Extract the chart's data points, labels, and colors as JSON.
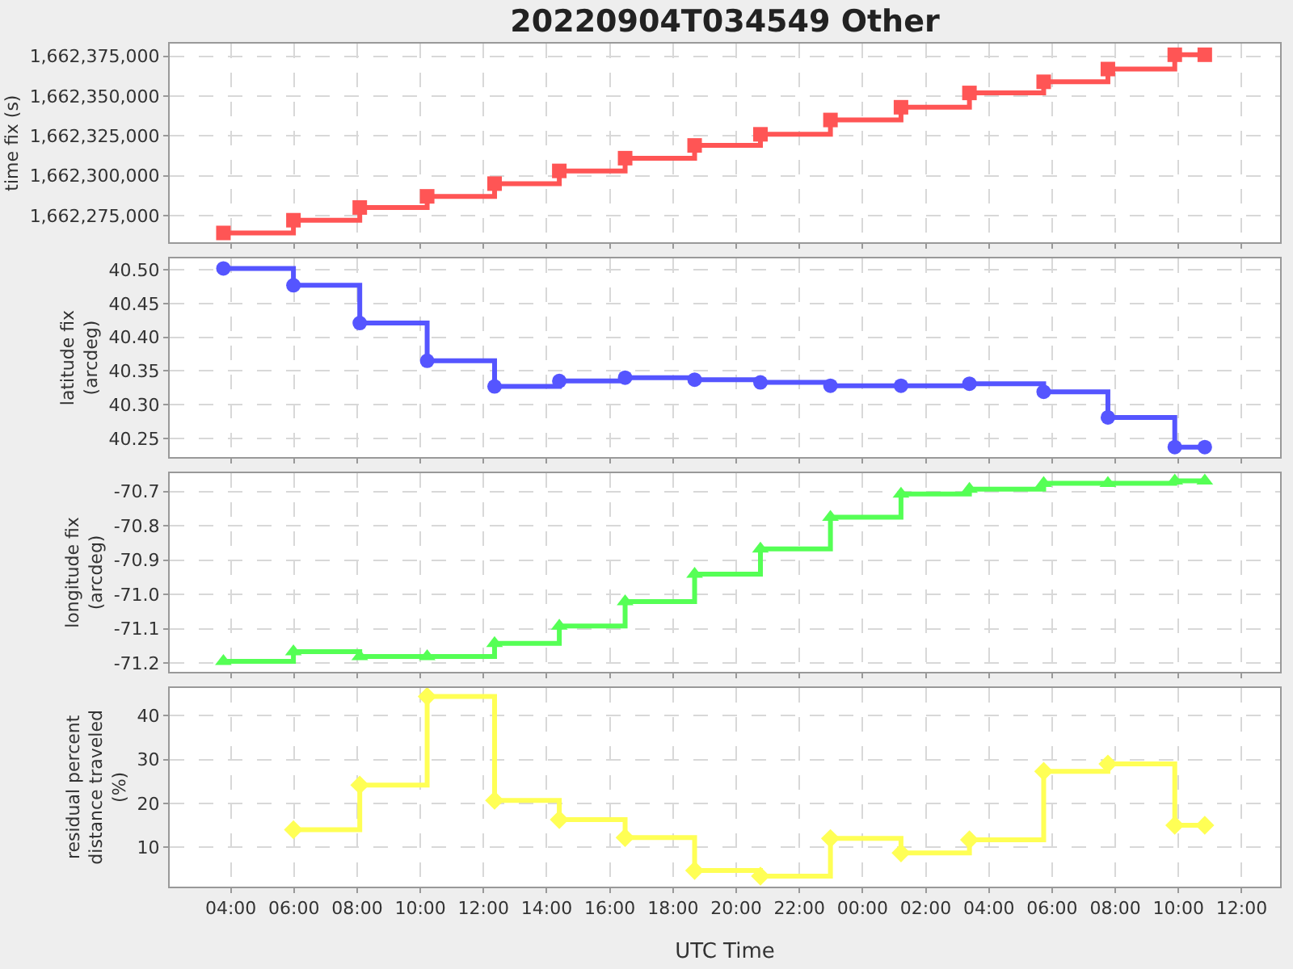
{
  "chart_data": [
    {
      "type": "step",
      "title": "20220904T034549 Other",
      "ylabel": "time fix (s)",
      "tick_labels": "y",
      "grid": true,
      "marker": "square",
      "xlim": [
        "2022-09-04T02:04",
        "2022-09-05T13:13"
      ],
      "xticks": [
        {
          "value": "2022-09-04T04:00",
          "label": null
        },
        {
          "value": "2022-09-04T06:00",
          "label": null
        },
        {
          "value": "2022-09-04T08:00",
          "label": null
        },
        {
          "value": "2022-09-04T10:00",
          "label": null
        },
        {
          "value": "2022-09-04T12:00",
          "label": null
        },
        {
          "value": "2022-09-04T14:00",
          "label": null
        },
        {
          "value": "2022-09-04T16:00",
          "label": null
        },
        {
          "value": "2022-09-04T18:00",
          "label": null
        },
        {
          "value": "2022-09-04T20:00",
          "label": null
        },
        {
          "value": "2022-09-04T22:00",
          "label": null
        },
        {
          "value": "2022-09-05T00:00",
          "label": null
        },
        {
          "value": "2022-09-05T02:00",
          "label": null
        },
        {
          "value": "2022-09-05T04:00",
          "label": null
        },
        {
          "value": "2022-09-05T06:00",
          "label": null
        },
        {
          "value": "2022-09-05T08:00",
          "label": null
        },
        {
          "value": "2022-09-05T10:00",
          "label": null
        },
        {
          "value": "2022-09-05T12:00",
          "label": null
        }
      ],
      "ylim": [
        1662258000,
        1662383000
      ],
      "yticks": [
        {
          "value": 1662275000,
          "label": "1,662,275,000"
        },
        {
          "value": 1662300000,
          "label": "1,662,300,000"
        },
        {
          "value": 1662325000,
          "label": "1,662,325,000"
        },
        {
          "value": 1662350000,
          "label": "1,662,350,000"
        },
        {
          "value": 1662375000,
          "label": "1,662,375,000"
        }
      ],
      "x": [
        "2022-09-04T03:46",
        "2022-09-04T05:59",
        "2022-09-04T08:05",
        "2022-09-04T10:13",
        "2022-09-04T12:21",
        "2022-09-04T14:24",
        "2022-09-04T16:29",
        "2022-09-04T18:41",
        "2022-09-04T20:46",
        "2022-09-04T22:59",
        "2022-09-05T01:13",
        "2022-09-05T03:23",
        "2022-09-05T05:44",
        "2022-09-05T07:46",
        "2022-09-05T09:53",
        "2022-09-05T10:50"
      ],
      "series": [
        {
          "color": "#ff5555",
          "values": [
            1662264000,
            1662272000,
            1662280000,
            1662287000,
            1662295000,
            1662303000,
            1662311000,
            1662319000,
            1662326000,
            1662335000,
            1662343000,
            1662352000,
            1662359000,
            1662367000,
            1662376000,
            1662376000
          ]
        }
      ]
    },
    {
      "type": "step",
      "ylabel": "latitude fix (arcdeg)",
      "tick_labels": "y",
      "grid": true,
      "marker": "circle",
      "xlim": [
        "2022-09-04T02:04",
        "2022-09-05T13:13"
      ],
      "xticks": [
        {
          "value": "2022-09-04T04:00",
          "label": null
        },
        {
          "value": "2022-09-04T06:00",
          "label": null
        },
        {
          "value": "2022-09-04T08:00",
          "label": null
        },
        {
          "value": "2022-09-04T10:00",
          "label": null
        },
        {
          "value": "2022-09-04T12:00",
          "label": null
        },
        {
          "value": "2022-09-04T14:00",
          "label": null
        },
        {
          "value": "2022-09-04T16:00",
          "label": null
        },
        {
          "value": "2022-09-04T18:00",
          "label": null
        },
        {
          "value": "2022-09-04T20:00",
          "label": null
        },
        {
          "value": "2022-09-04T22:00",
          "label": null
        },
        {
          "value": "2022-09-05T00:00",
          "label": null
        },
        {
          "value": "2022-09-05T02:00",
          "label": null
        },
        {
          "value": "2022-09-05T04:00",
          "label": null
        },
        {
          "value": "2022-09-05T06:00",
          "label": null
        },
        {
          "value": "2022-09-05T08:00",
          "label": null
        },
        {
          "value": "2022-09-05T10:00",
          "label": null
        },
        {
          "value": "2022-09-05T12:00",
          "label": null
        }
      ],
      "ylim": [
        40.222,
        40.517
      ],
      "yticks": [
        {
          "value": 40.25,
          "label": "40.25"
        },
        {
          "value": 40.3,
          "label": "40.30"
        },
        {
          "value": 40.35,
          "label": "40.35"
        },
        {
          "value": 40.4,
          "label": "40.40"
        },
        {
          "value": 40.45,
          "label": "40.45"
        },
        {
          "value": 40.5,
          "label": "40.50"
        }
      ],
      "x": [
        "2022-09-04T03:46",
        "2022-09-04T05:59",
        "2022-09-04T08:05",
        "2022-09-04T10:13",
        "2022-09-04T12:21",
        "2022-09-04T14:24",
        "2022-09-04T16:29",
        "2022-09-04T18:41",
        "2022-09-04T20:46",
        "2022-09-04T22:59",
        "2022-09-05T01:13",
        "2022-09-05T03:23",
        "2022-09-05T05:44",
        "2022-09-05T07:46",
        "2022-09-05T09:53",
        "2022-09-05T10:50"
      ],
      "series": [
        {
          "color": "#5555ff",
          "values": [
            40.502,
            40.477,
            40.421,
            40.365,
            40.327,
            40.335,
            40.34,
            40.337,
            40.333,
            40.328,
            40.328,
            40.331,
            40.319,
            40.281,
            40.237,
            40.237
          ]
        }
      ]
    },
    {
      "type": "step",
      "ylabel": "longitude fix (arcdeg)",
      "tick_labels": "y",
      "grid": true,
      "marker": "triangle",
      "xlim": [
        "2022-09-04T02:04",
        "2022-09-05T13:13"
      ],
      "xticks": [
        {
          "value": "2022-09-04T04:00",
          "label": null
        },
        {
          "value": "2022-09-04T06:00",
          "label": null
        },
        {
          "value": "2022-09-04T08:00",
          "label": null
        },
        {
          "value": "2022-09-04T10:00",
          "label": null
        },
        {
          "value": "2022-09-04T12:00",
          "label": null
        },
        {
          "value": "2022-09-04T14:00",
          "label": null
        },
        {
          "value": "2022-09-04T16:00",
          "label": null
        },
        {
          "value": "2022-09-04T18:00",
          "label": null
        },
        {
          "value": "2022-09-04T20:00",
          "label": null
        },
        {
          "value": "2022-09-04T22:00",
          "label": null
        },
        {
          "value": "2022-09-05T00:00",
          "label": null
        },
        {
          "value": "2022-09-05T02:00",
          "label": null
        },
        {
          "value": "2022-09-05T04:00",
          "label": null
        },
        {
          "value": "2022-09-05T06:00",
          "label": null
        },
        {
          "value": "2022-09-05T08:00",
          "label": null
        },
        {
          "value": "2022-09-05T10:00",
          "label": null
        },
        {
          "value": "2022-09-05T12:00",
          "label": null
        }
      ],
      "ylim": [
        -71.226,
        -70.646
      ],
      "yticks": [
        -71.2,
        -71.1,
        {
          "value": -71.0,
          "label": "-71.0"
        },
        -70.9,
        -70.8,
        -70.7
      ],
      "x": [
        "2022-09-04T03:46",
        "2022-09-04T05:59",
        "2022-09-04T08:05",
        "2022-09-04T10:13",
        "2022-09-04T12:21",
        "2022-09-04T14:24",
        "2022-09-04T16:29",
        "2022-09-04T18:41",
        "2022-09-04T20:46",
        "2022-09-04T22:59",
        "2022-09-05T01:13",
        "2022-09-05T03:23",
        "2022-09-05T05:44",
        "2022-09-05T07:46",
        "2022-09-05T09:53",
        "2022-09-05T10:50"
      ],
      "series": [
        {
          "color": "#55ff55",
          "values": [
            -71.195,
            -71.167,
            -71.181,
            -71.181,
            -71.143,
            -71.092,
            -71.021,
            -70.941,
            -70.867,
            -70.775,
            -70.707,
            -70.693,
            -70.676,
            -70.676,
            -70.669,
            -70.669
          ]
        }
      ]
    },
    {
      "type": "step",
      "ylabel": "residual percent distance traveled (%)",
      "xlabel": "UTC Time",
      "grid": true,
      "marker": "diamond",
      "xlim": [
        "2022-09-04T02:04",
        "2022-09-05T13:13"
      ],
      "xticks": [
        {
          "value": "2022-09-04T04:00",
          "label": "04:00"
        },
        {
          "value": "2022-09-04T06:00",
          "label": "06:00"
        },
        {
          "value": "2022-09-04T08:00",
          "label": "08:00"
        },
        {
          "value": "2022-09-04T10:00",
          "label": "10:00"
        },
        {
          "value": "2022-09-04T12:00",
          "label": "12:00"
        },
        {
          "value": "2022-09-04T14:00",
          "label": "14:00"
        },
        {
          "value": "2022-09-04T16:00",
          "label": "16:00"
        },
        {
          "value": "2022-09-04T18:00",
          "label": "18:00"
        },
        {
          "value": "2022-09-04T20:00",
          "label": "20:00"
        },
        {
          "value": "2022-09-04T22:00",
          "label": "22:00"
        },
        {
          "value": "2022-09-05T00:00",
          "label": "00:00"
        },
        {
          "value": "2022-09-05T02:00",
          "label": "02:00"
        },
        {
          "value": "2022-09-05T04:00",
          "label": "04:00"
        },
        {
          "value": "2022-09-05T06:00",
          "label": "06:00"
        },
        {
          "value": "2022-09-05T08:00",
          "label": "08:00"
        },
        {
          "value": "2022-09-05T10:00",
          "label": "10:00"
        },
        {
          "value": "2022-09-05T12:00",
          "label": "12:00"
        }
      ],
      "ylim": [
        1,
        46.4
      ],
      "yticks": [
        10,
        20,
        30,
        40
      ],
      "series": [
        {
          "color": "#ffff55",
          "x": [
            "2022-09-04T05:59",
            "2022-09-04T08:05",
            "2022-09-04T10:13",
            "2022-09-04T12:21",
            "2022-09-04T14:24",
            "2022-09-04T16:29",
            "2022-09-04T18:41",
            "2022-09-04T20:46",
            "2022-09-04T22:59",
            "2022-09-05T01:13",
            "2022-09-05T03:23",
            "2022-09-05T05:44",
            "2022-09-05T07:46",
            "2022-09-05T09:53",
            "2022-09-05T10:50"
          ],
          "values": [
            14.0,
            24.2,
            44.4,
            20.7,
            16.3,
            12.2,
            4.7,
            3.4,
            12.0,
            8.7,
            11.7,
            27.3,
            29.0,
            15.0,
            15.0
          ]
        }
      ]
    }
  ]
}
